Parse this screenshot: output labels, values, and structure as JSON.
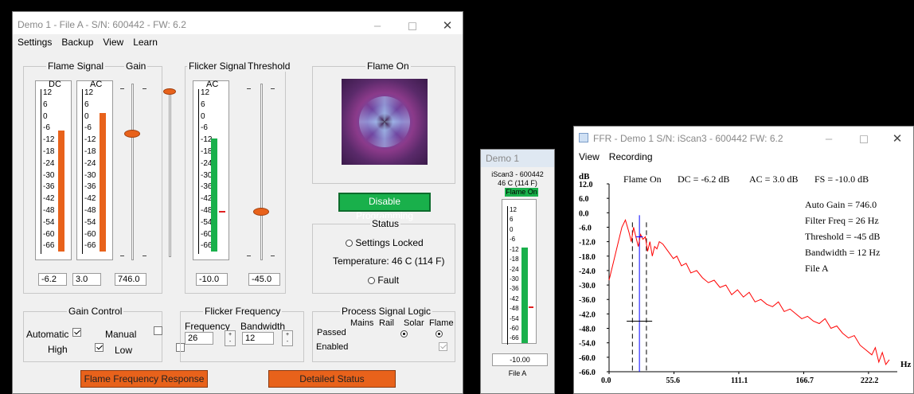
{
  "main": {
    "title": "Demo 1 - File A - S/N: 600442 - FW: 6.2",
    "menu": [
      "Settings",
      "Backup",
      "View",
      "Learn"
    ],
    "flame_signal": {
      "label": "Flame Signal",
      "dc_label": "DC",
      "ac_label": "AC",
      "dc_value": "-6.2",
      "ac_value": "3.0",
      "dc_level_db": -6.2,
      "ac_level_db": 3.0
    },
    "gain": {
      "label": "Gain",
      "value": "746.0"
    },
    "flicker_signal": {
      "label": "Flicker Signal",
      "ac_label": "AC",
      "value": "-10.0",
      "level_db": -10.0
    },
    "threshold": {
      "label": "Threshold",
      "value": "-45.0"
    },
    "scale": [
      "12",
      "6",
      "0",
      "-6",
      "-12",
      "-18",
      "-24",
      "-30",
      "-36",
      "-42",
      "-48",
      "-54",
      "-60",
      "-66"
    ],
    "flame_panel": {
      "label": "Flame On"
    },
    "disable_programming": "Disable Programming",
    "status": {
      "label": "Status",
      "settings_locked": "Settings Locked",
      "temperature": "Temperature: 46 C  (114 F)",
      "fault": "Fault"
    },
    "gain_control": {
      "label": "Gain Control",
      "automatic": "Automatic",
      "manual": "Manual",
      "high": "High",
      "low": "Low"
    },
    "flicker_frequency": {
      "label": "Flicker Frequency",
      "frequency_label": "Frequency",
      "bandwidth_label": "Bandwidth",
      "frequency_value": "26",
      "bandwidth_value": "12"
    },
    "process_signal_logic": {
      "label": "Process Signal Logic",
      "columns": [
        "Mains",
        "Rail",
        "Solar",
        "Flame"
      ],
      "passed": "Passed",
      "enabled": "Enabled"
    },
    "buttons": {
      "flame_frequency_response": "Flame Frequency Response",
      "detailed_status": "Detailed Status"
    }
  },
  "mini": {
    "title": "Demo 1",
    "device": "iScan3 - 600442",
    "temp": "46 C  (114 F)",
    "flame_on": "Flame On",
    "value": "-10.00",
    "file": "File A",
    "level_db": -10.0
  },
  "ffr": {
    "title": "FFR - Demo 1   S/N: iScan3 - 600442  FW: 6.2",
    "menu": [
      "View",
      "Recording"
    ],
    "header": {
      "flame_on": "Flame On",
      "dc": "DC =   -6.2 dB",
      "ac": "AC =   3.0 dB",
      "fs": "FS =  -10.0 dB"
    },
    "info": [
      "Auto Gain =  746.0",
      "Filter Freq = 26  Hz",
      "Threshold = -45 dB",
      "Bandwidth = 12  Hz",
      "File A"
    ],
    "colors": {
      "trace": "#ff0000",
      "marker": "#0000ff"
    }
  },
  "chart_data": {
    "type": "line",
    "ylabel": "dB",
    "xlabel": "Hz",
    "ylim": [
      -66.0,
      12.0
    ],
    "xlim": [
      0.0,
      240.0
    ],
    "yticks": [
      "12.0",
      "6.0",
      "0.0",
      "-6.0",
      "-12.0",
      "-18.0",
      "-24.0",
      "-30.0",
      "-36.0",
      "-42.0",
      "-48.0",
      "-54.0",
      "-60.0",
      "-66.0"
    ],
    "xticks": [
      "0.0",
      "55.6",
      "111.1",
      "166.7",
      "222.2"
    ],
    "filter_freq": 26,
    "bandwidth": 12,
    "threshold": -45,
    "series": [
      {
        "x": [
          0,
          4,
          8,
          11,
          14,
          17,
          19,
          21,
          23,
          25,
          27,
          29,
          31,
          33,
          35,
          37,
          39,
          41,
          43,
          46,
          49,
          52,
          55,
          58,
          62,
          66,
          70,
          75,
          80,
          85,
          90,
          95,
          100,
          105,
          110,
          115,
          120,
          125,
          130,
          135,
          140,
          145,
          150,
          155,
          160,
          165,
          170,
          175,
          180,
          185,
          190,
          195,
          200,
          205,
          210,
          215,
          220,
          225,
          228,
          231,
          234,
          237,
          240
        ],
        "y": [
          -28,
          -20,
          -12,
          -6,
          -3,
          -8,
          -12,
          -6,
          -10,
          -14,
          -9,
          -11,
          -10,
          -16,
          -12,
          -18,
          -14,
          -15,
          -12,
          -13,
          -15,
          -17,
          -19,
          -18,
          -22,
          -21,
          -25,
          -24,
          -27,
          -29,
          -28,
          -31,
          -30,
          -34,
          -32,
          -35,
          -33,
          -37,
          -36,
          -38,
          -39,
          -37,
          -41,
          -40,
          -42,
          -44,
          -43,
          -45,
          -46,
          -44,
          -48,
          -47,
          -50,
          -52,
          -51,
          -55,
          -57,
          -59,
          -56,
          -62,
          -58,
          -63,
          -61
        ]
      }
    ]
  }
}
